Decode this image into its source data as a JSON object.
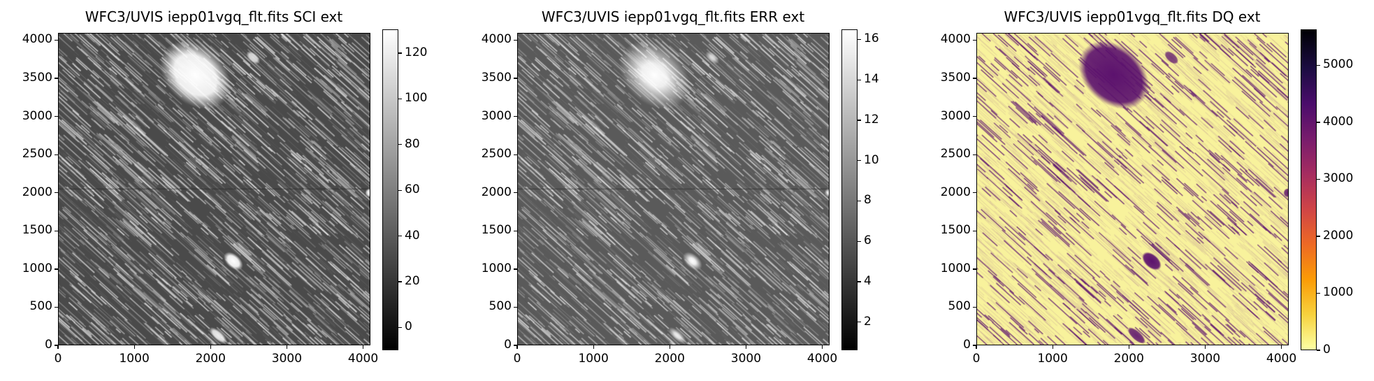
{
  "chart_data": [
    {
      "type": "heatmap",
      "title": "WFC3/UVIS iepp01vgq_flt.fits SCI ext",
      "xlim": [
        0,
        4096
      ],
      "ylim": [
        0,
        4096
      ],
      "xticks": [
        0,
        1000,
        2000,
        3000,
        4000
      ],
      "yticks": [
        0,
        500,
        1000,
        1500,
        2000,
        2500,
        3000,
        3500,
        4000
      ],
      "colormap": "gray",
      "colorbar": {
        "range": [
          -10,
          130.4
        ],
        "ticks": [
          0,
          20,
          40,
          60,
          80,
          100,
          120
        ]
      }
    },
    {
      "type": "heatmap",
      "title": "WFC3/UVIS iepp01vgq_flt.fits ERR ext",
      "xlim": [
        0,
        4096
      ],
      "ylim": [
        0,
        4096
      ],
      "xticks": [
        0,
        1000,
        2000,
        3000,
        4000
      ],
      "yticks": [
        0,
        500,
        1000,
        1500,
        2000,
        2500,
        3000,
        3500,
        4000
      ],
      "colormap": "gray",
      "colorbar": {
        "range": [
          0.6,
          16.5
        ],
        "ticks": [
          2,
          4,
          6,
          8,
          10,
          12,
          14,
          16
        ]
      }
    },
    {
      "type": "heatmap",
      "title": "WFC3/UVIS iepp01vgq_flt.fits DQ ext",
      "xlim": [
        0,
        4096
      ],
      "ylim": [
        0,
        4096
      ],
      "xticks": [
        0,
        1000,
        2000,
        3000,
        4000
      ],
      "yticks": [
        0,
        500,
        1000,
        1500,
        2000,
        2500,
        3000,
        3500,
        4000
      ],
      "colormap": "inferno_r",
      "colorbar": {
        "range": [
          0,
          5630
        ],
        "ticks": [
          0,
          1000,
          2000,
          3000,
          4000,
          5000
        ]
      }
    }
  ]
}
